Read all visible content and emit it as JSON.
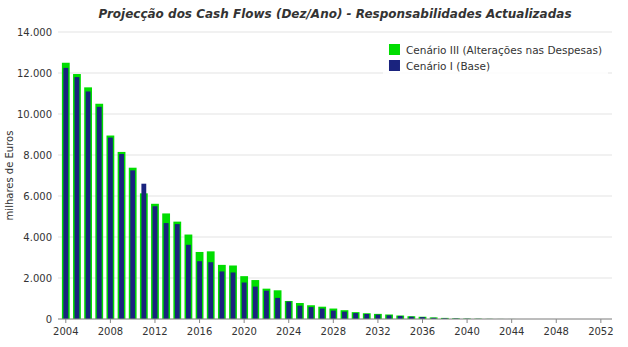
{
  "chart_data": {
    "type": "bar",
    "title": "Projecção dos Cash Flows (Dez/Ano) - Responsabilidades Actualizadas",
    "ylabel": "milhares de Euros",
    "x": [
      2004,
      2005,
      2006,
      2007,
      2008,
      2009,
      2010,
      2011,
      2012,
      2013,
      2014,
      2015,
      2016,
      2017,
      2018,
      2019,
      2020,
      2021,
      2022,
      2023,
      2024,
      2025,
      2026,
      2027,
      2028,
      2029,
      2030,
      2031,
      2032,
      2033,
      2034,
      2035,
      2036,
      2037,
      2038,
      2039,
      2040,
      2041,
      2042,
      2043,
      2044,
      2045,
      2046,
      2047,
      2048,
      2049,
      2050,
      2051,
      2052
    ],
    "series": [
      {
        "name": "Cenário III (Alterações nas Despesas)",
        "color": "#00dd00",
        "values": [
          12500,
          11950,
          11300,
          10500,
          8950,
          8150,
          7380,
          6130,
          5620,
          5150,
          4750,
          4120,
          3270,
          3300,
          2640,
          2610,
          2090,
          1900,
          1480,
          1400,
          880,
          780,
          670,
          600,
          510,
          430,
          335,
          280,
          250,
          220,
          170,
          135,
          110,
          78,
          54,
          32,
          20,
          14,
          7,
          3,
          2,
          0,
          0,
          0,
          0,
          0,
          0,
          0,
          0
        ]
      },
      {
        "name": "Cenário I (Base)",
        "color": "#1a237e",
        "values": [
          12250,
          11800,
          11100,
          10350,
          8850,
          8050,
          7250,
          6600,
          5500,
          4680,
          4630,
          3620,
          2820,
          2770,
          2320,
          2270,
          1780,
          1580,
          1380,
          1030,
          850,
          650,
          580,
          510,
          410,
          360,
          290,
          245,
          210,
          180,
          148,
          112,
          92,
          58,
          38,
          24,
          14,
          9,
          4,
          2,
          1,
          0,
          0,
          0,
          0,
          0,
          0,
          0,
          0
        ]
      }
    ],
    "xlim": [
      2003.3,
      2053
    ],
    "xticks": [
      2004,
      2008,
      2012,
      2016,
      2020,
      2024,
      2028,
      2032,
      2036,
      2040,
      2044,
      2048,
      2052
    ],
    "ylim": [
      0,
      14000
    ],
    "yticks": [
      0,
      {
        "value": 2000,
        "label": "2.000"
      },
      {
        "value": 4000,
        "label": "4.000"
      },
      {
        "value": 6000,
        "label": "6.000"
      },
      {
        "value": 8000,
        "label": "8.000"
      },
      {
        "value": 10000,
        "label": "10.000"
      },
      {
        "value": 12000,
        "label": "12.000"
      },
      {
        "value": 14000,
        "label": "14.000"
      }
    ],
    "grid": true,
    "legend": "upper right"
  }
}
